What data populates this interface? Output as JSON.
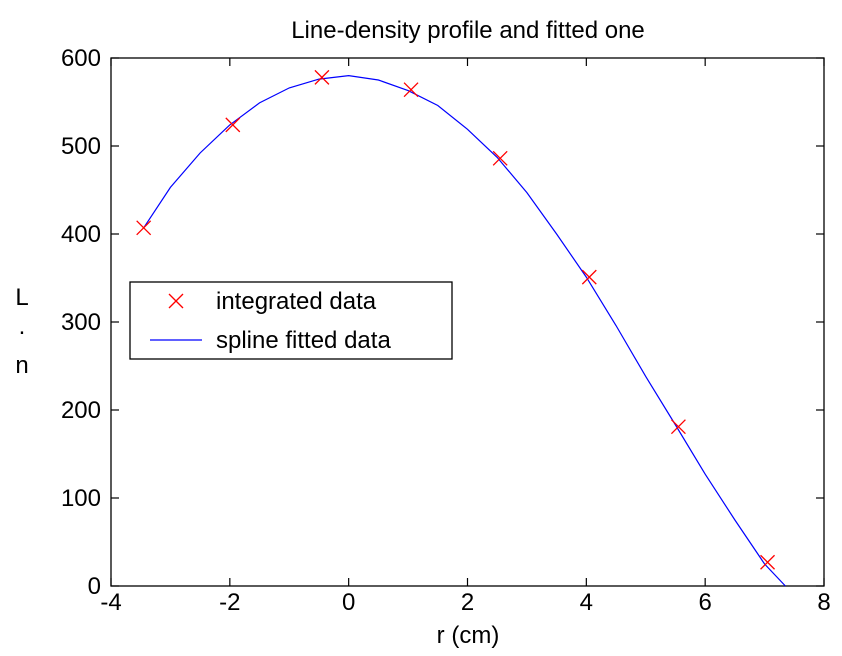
{
  "chart_data": {
    "type": "line",
    "title": "Line-density profile and fitted one",
    "xlabel": "r (cm)",
    "ylabel_lines": [
      "L",
      ".",
      "n"
    ],
    "xlim": [
      -4,
      8
    ],
    "ylim": [
      0,
      600
    ],
    "xticks": [
      -4,
      -2,
      0,
      2,
      4,
      6,
      8
    ],
    "yticks": [
      0,
      100,
      200,
      300,
      400,
      500,
      600
    ],
    "grid": false,
    "legend_position": "middle-left",
    "series": [
      {
        "name": "integrated data",
        "kind": "markers",
        "marker": "x",
        "color": "#ff0000",
        "x": [
          -3.45,
          -1.95,
          -0.45,
          1.05,
          2.55,
          4.05,
          5.55,
          7.05
        ],
        "y": [
          407,
          524,
          578,
          564,
          486,
          351,
          181,
          27
        ]
      },
      {
        "name": "spline fitted data",
        "kind": "line",
        "color": "#0000ff",
        "x": [
          -3.45,
          -3.0,
          -2.5,
          -2.0,
          -1.5,
          -1.0,
          -0.5,
          0.0,
          0.5,
          1.0,
          1.5,
          2.0,
          2.5,
          3.0,
          3.5,
          4.0,
          4.5,
          5.0,
          5.5,
          6.0,
          6.5,
          7.0,
          7.35
        ],
        "y": [
          407,
          453,
          492,
          524,
          549,
          566,
          576,
          580,
          575,
          563,
          546,
          519,
          487,
          447,
          400,
          351,
          296,
          238,
          183,
          127,
          75,
          25,
          0
        ]
      }
    ]
  }
}
